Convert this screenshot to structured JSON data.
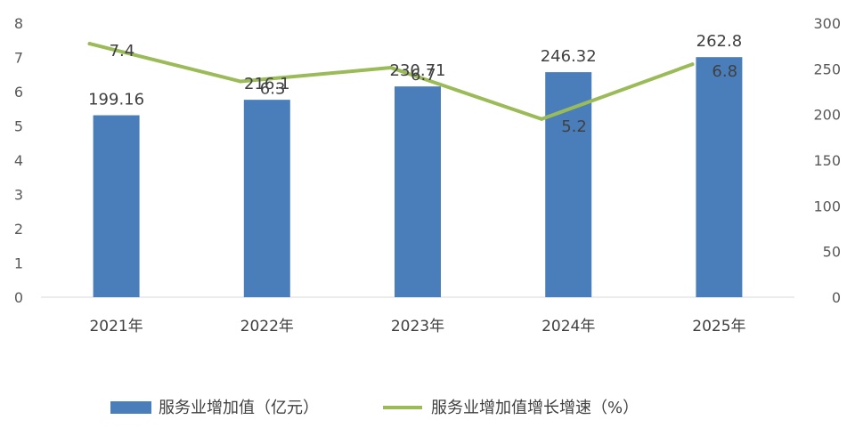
{
  "chart_data": {
    "type": "bar+line",
    "categories": [
      "2021年",
      "2022年",
      "2023年",
      "2024年",
      "2025年"
    ],
    "series": [
      {
        "name": "服务业增加值（亿元）",
        "type": "bar",
        "axis": "right",
        "values": [
          199.16,
          216.1,
          230.71,
          246.32,
          262.8
        ],
        "labels": [
          "199.16",
          "216.1",
          "230.71",
          "246.32",
          "262.8"
        ],
        "color": "#4a7ebb"
      },
      {
        "name": "服务业增加值增长增速（%）",
        "type": "line",
        "axis": "left",
        "values": [
          7.4,
          6.3,
          6.7,
          5.2,
          6.8
        ],
        "labels": [
          "7.4",
          "6.3",
          "6.7",
          "5.2",
          "6.8"
        ],
        "color": "#9bbb59"
      }
    ],
    "y_left": {
      "min": 0,
      "max": 8,
      "step": 1,
      "ticks": [
        "0",
        "1",
        "2",
        "3",
        "4",
        "5",
        "6",
        "7",
        "8"
      ]
    },
    "y_right": {
      "min": 0,
      "max": 300,
      "step": 50,
      "ticks": [
        "0",
        "50",
        "100",
        "150",
        "200",
        "250",
        "300"
      ]
    },
    "grid": false,
    "legend_position": "bottom",
    "title": "",
    "xlabel": "",
    "ylabel": ""
  }
}
